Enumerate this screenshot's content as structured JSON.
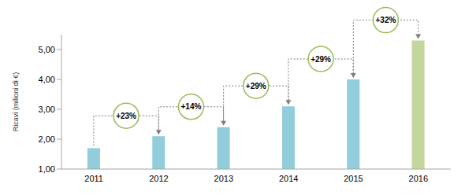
{
  "chart_data": {
    "type": "bar",
    "y_label": "Ricavi (milioni di €)",
    "categories": [
      "2011",
      "2012",
      "2013",
      "2014",
      "2015",
      "2016"
    ],
    "values": [
      1.7,
      2.1,
      2.4,
      3.1,
      4.0,
      5.3
    ],
    "colors": [
      "#92cddc",
      "#92cddc",
      "#92cddc",
      "#92cddc",
      "#92cddc",
      "#c3d69b"
    ],
    "ylim": [
      1,
      5.5
    ],
    "yticks": [
      {
        "value": 1,
        "label": "1,00"
      },
      {
        "value": 2,
        "label": "2,00"
      },
      {
        "value": 3,
        "label": "3,00"
      },
      {
        "value": 4,
        "label": "4,00"
      },
      {
        "value": 5,
        "label": "5,00"
      }
    ],
    "grid": false,
    "annotations": [
      "+23%",
      "+14%",
      "+29%",
      "+29%",
      "+32%"
    ]
  }
}
